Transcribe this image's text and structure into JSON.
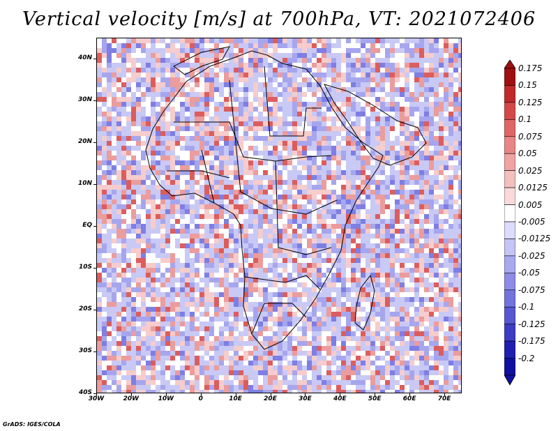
{
  "title": "Vertical velocity [m/s] at 700hPa, VT: 2021072406",
  "credit": "GrADS: IGES/COLA",
  "map": {
    "region": "Africa",
    "lon_range": [
      -30,
      75
    ],
    "lat_range": [
      -40,
      45
    ],
    "lat_labels": [
      "40N",
      "30N",
      "20N",
      "10N",
      "EQ",
      "10S",
      "20S",
      "30S",
      "40S"
    ],
    "lat_values": [
      40,
      30,
      20,
      10,
      0,
      -10,
      -20,
      -30,
      -40
    ],
    "lon_labels": [
      "30W",
      "20W",
      "10W",
      "0",
      "10E",
      "20E",
      "30E",
      "40E",
      "50E",
      "60E",
      "70E"
    ],
    "lon_values": [
      -30,
      -20,
      -10,
      0,
      10,
      20,
      30,
      40,
      50,
      60,
      70
    ]
  },
  "colorbar": {
    "labels": [
      "0.175",
      "0.15",
      "0.125",
      "0.1",
      "0.075",
      "0.05",
      "0.025",
      "0.0125",
      "0.005",
      "-0.005",
      "-0.0125",
      "-0.025",
      "-0.05",
      "-0.075",
      "-0.1",
      "-0.125",
      "-0.175",
      "-0.2"
    ],
    "colors": [
      "#a01010",
      "#c02a2a",
      "#d54848",
      "#e06666",
      "#e88686",
      "#efa3a3",
      "#f4bfbf",
      "#f9dada",
      "#ffffff",
      "#dcdcfb",
      "#c4c4f6",
      "#a9a9f0",
      "#8d8de8",
      "#7373de",
      "#5757d2",
      "#3c3cc4",
      "#2020b0",
      "#1010a0"
    ]
  },
  "palette": {
    "red": "#d83c3c",
    "blue": "#4a4ad8",
    "white": "#ffffff"
  }
}
